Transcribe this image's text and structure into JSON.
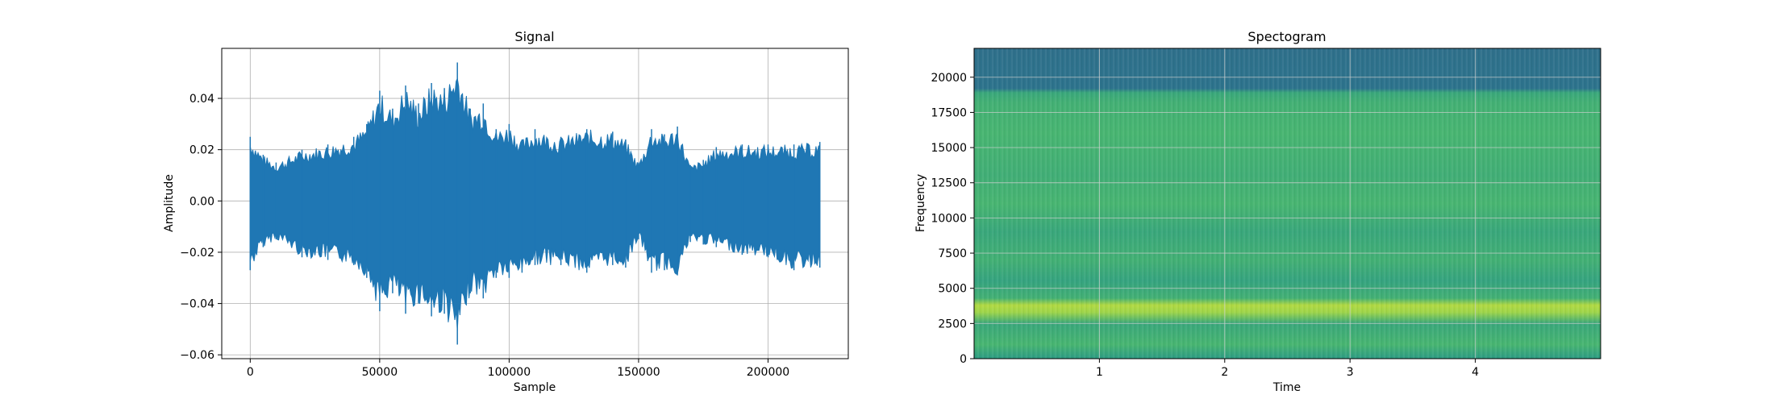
{
  "chart_data": [
    {
      "type": "line",
      "title": "Signal",
      "xlabel": "Sample",
      "ylabel": "Amplitude",
      "xlim": [
        -11000,
        231000
      ],
      "ylim": [
        -0.0615,
        0.0595
      ],
      "grid": true,
      "xticks": [
        0,
        50000,
        100000,
        150000,
        200000
      ],
      "xtick_labels": [
        "0",
        "50000",
        "100000",
        "150000",
        "200000"
      ],
      "yticks": [
        -0.06,
        -0.04,
        -0.02,
        0.0,
        0.02,
        0.04
      ],
      "ytick_labels": [
        "−0.06",
        "−0.04",
        "−0.02",
        "0.00",
        "0.02",
        "0.04"
      ],
      "color": "#1f77b4",
      "series": [
        {
          "x": [
            0,
            5000,
            10000,
            20000,
            30000,
            40000,
            45000,
            50000,
            55000,
            60000,
            65000,
            70000,
            75000,
            80000,
            85000,
            90000,
            95000,
            100000,
            105000,
            110000,
            120000,
            130000,
            140000,
            145000,
            150000,
            155000,
            160000,
            165000,
            170000,
            175000,
            180000,
            190000,
            200000,
            210000,
            220000
          ],
          "envelope_upper": [
            0.025,
            0.018,
            0.015,
            0.02,
            0.022,
            0.025,
            0.03,
            0.043,
            0.036,
            0.045,
            0.038,
            0.046,
            0.044,
            0.054,
            0.036,
            0.038,
            0.028,
            0.03,
            0.024,
            0.028,
            0.025,
            0.028,
            0.027,
            0.024,
            0.015,
            0.028,
            0.026,
            0.029,
            0.014,
            0.016,
            0.021,
            0.022,
            0.022,
            0.022,
            0.023
          ],
          "envelope_lower": [
            -0.027,
            -0.018,
            -0.015,
            -0.022,
            -0.023,
            -0.025,
            -0.03,
            -0.043,
            -0.036,
            -0.044,
            -0.04,
            -0.045,
            -0.044,
            -0.056,
            -0.036,
            -0.038,
            -0.03,
            -0.03,
            -0.028,
            -0.025,
            -0.025,
            -0.028,
            -0.025,
            -0.026,
            -0.015,
            -0.028,
            -0.027,
            -0.029,
            -0.016,
            -0.017,
            -0.018,
            -0.021,
            -0.022,
            -0.027,
            -0.026
          ]
        }
      ]
    },
    {
      "type": "heatmap",
      "title": "Spectogram",
      "xlabel": "Time",
      "ylabel": "Frequency",
      "xlim": [
        0,
        5.0
      ],
      "ylim": [
        0,
        22050
      ],
      "grid": true,
      "xticks": [
        1,
        2,
        3,
        4
      ],
      "xtick_labels": [
        "1",
        "2",
        "3",
        "4"
      ],
      "yticks": [
        0,
        2500,
        5000,
        7500,
        10000,
        12500,
        15000,
        17500,
        20000
      ],
      "ytick_labels": [
        "0",
        "2500",
        "5000",
        "7500",
        "10000",
        "12500",
        "15000",
        "17500",
        "20000"
      ],
      "colormap": "viridis",
      "frequency_profile": [
        {
          "freq": 0,
          "level": 0.55
        },
        {
          "freq": 1000,
          "level": 0.66
        },
        {
          "freq": 2500,
          "level": 0.6
        },
        {
          "freq": 3300,
          "level": 0.85
        },
        {
          "freq": 3800,
          "level": 0.88
        },
        {
          "freq": 4300,
          "level": 0.64
        },
        {
          "freq": 5500,
          "level": 0.58
        },
        {
          "freq": 7000,
          "level": 0.64
        },
        {
          "freq": 9000,
          "level": 0.6
        },
        {
          "freq": 11000,
          "level": 0.66
        },
        {
          "freq": 13000,
          "level": 0.63
        },
        {
          "freq": 16000,
          "level": 0.66
        },
        {
          "freq": 18200,
          "level": 0.64
        },
        {
          "freq": 18900,
          "level": 0.6
        },
        {
          "freq": 19200,
          "level": 0.38
        },
        {
          "freq": 22050,
          "level": 0.37
        }
      ]
    }
  ]
}
